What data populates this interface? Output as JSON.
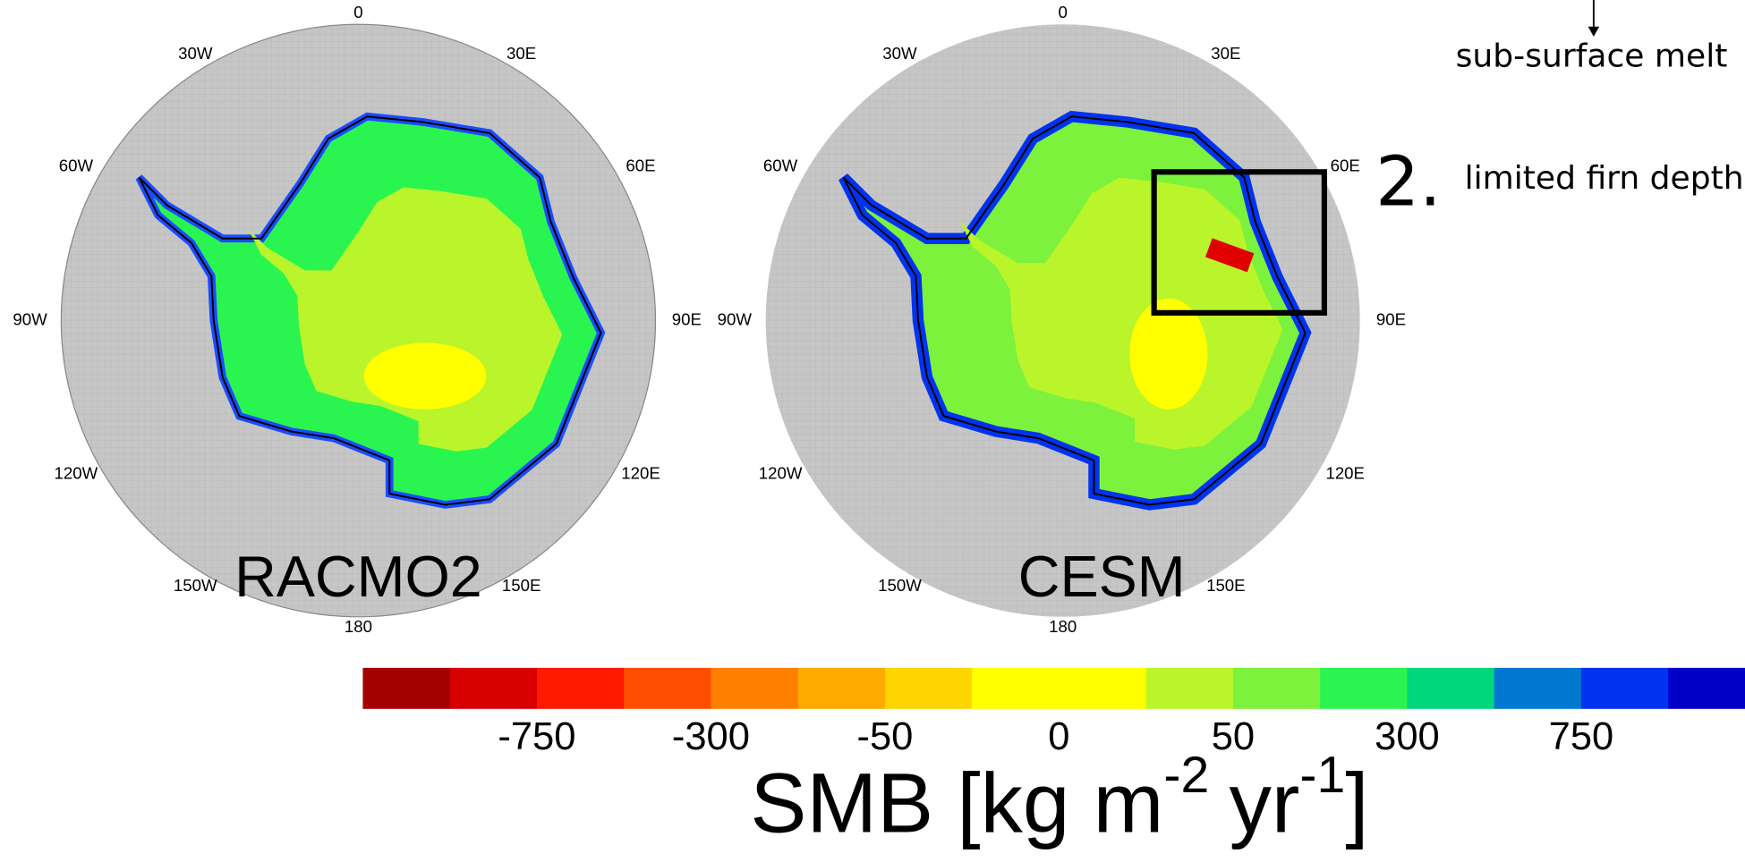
{
  "maps": [
    {
      "label": "RACMO2",
      "ticks": [
        "0",
        "30E",
        "60E",
        "90E",
        "120E",
        "150E",
        "180",
        "150W",
        "120W",
        "90W",
        "60W",
        "30W"
      ]
    },
    {
      "label": "CESM",
      "ticks": [
        "0",
        "30E",
        "60E",
        "90E",
        "120E",
        "150E",
        "180",
        "150W",
        "120W",
        "90W",
        "60W",
        "30W"
      ]
    }
  ],
  "colorbar": {
    "colors": [
      "#a50000",
      "#d70000",
      "#ff1a00",
      "#ff4d00",
      "#ff7f00",
      "#ffaa00",
      "#ffd500",
      "#ffff00",
      "#ffff00",
      "#b9f52a",
      "#7cf23c",
      "#2af550",
      "#00d67d",
      "#0078d0",
      "#0033f0",
      "#0000c8"
    ],
    "labels": [
      "-750",
      "-300",
      "-50",
      "0",
      "50",
      "300",
      "750"
    ],
    "title": {
      "base": "SMB [kg m",
      "sup1": "-2",
      "mid": "yr",
      "sup2": "-1",
      "end": "]"
    }
  },
  "annotations": {
    "melt": "sub-surface melt",
    "number": "2.",
    "firn": "limited firn depth"
  }
}
